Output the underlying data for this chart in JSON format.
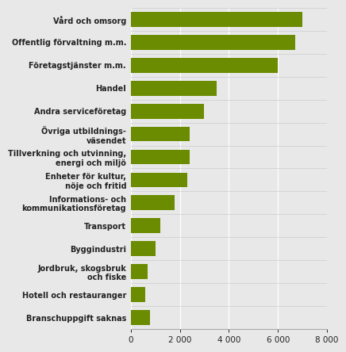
{
  "categories": [
    "Branschuppgift saknas",
    "Hotell och restauranger",
    "Jordbruk, skogsbruk\noch fiske",
    "Byggindustri",
    "Transport",
    "Informations- och\nkommunikationsföretag",
    "Enheter för kultur,\nnöje och fritid",
    "Tillverkning och utvinning,\nenergi och miljö",
    "Övriga utbildnings-\nväsendet",
    "Andra serviceföretag",
    "Handel",
    "Företagstjänster m.m.",
    "Offentlig förvaltning m.m.",
    "Vård och omsorg"
  ],
  "values": [
    800,
    600,
    700,
    1000,
    1200,
    1800,
    2300,
    2400,
    2400,
    3000,
    3500,
    6000,
    6700,
    7000
  ],
  "bar_color": "#6b8c00",
  "background_color": "#e8e8e8",
  "plot_bg_color": "#e8e8e8",
  "xlim": [
    0,
    8000
  ],
  "xticks": [
    0,
    2000,
    4000,
    6000,
    8000
  ],
  "grid_color": "#ffffff",
  "fontsize_labels": 7.0,
  "fontsize_ticks": 7.5,
  "bar_height": 0.65
}
